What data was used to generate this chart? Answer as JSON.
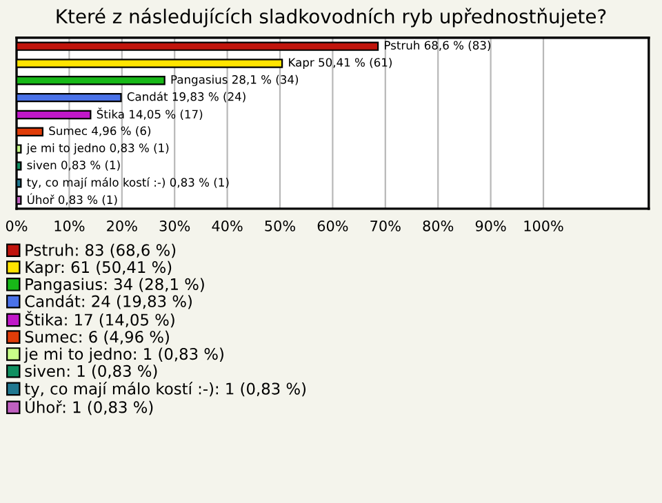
{
  "chart_data": {
    "type": "bar",
    "orientation": "horizontal",
    "title": "Které z následujících sladkovodních ryb upřednostňujete?",
    "categories": [
      null,
      null,
      null,
      null,
      null,
      null,
      null,
      null,
      null,
      null
    ],
    "series": [
      {
        "name": "Pstruh: 83 (68,6 %)",
        "color": "#c0140c",
        "values": [
          68.6,
          null,
          null,
          null,
          null,
          null,
          null,
          null,
          null,
          null
        ],
        "value_labels": [
          "Pstruh 68,6 % (83)",
          null,
          null,
          null,
          null,
          null,
          null,
          null,
          null,
          null
        ]
      },
      {
        "name": "Kapr: 61 (50,41 %)",
        "color": "#ffe400",
        "values": [
          null,
          50.41,
          null,
          null,
          null,
          null,
          null,
          null,
          null,
          null
        ],
        "value_labels": [
          null,
          "Kapr 50,41 % (61)",
          null,
          null,
          null,
          null,
          null,
          null,
          null,
          null
        ]
      },
      {
        "name": "Pangasius: 34 (28,1 %)",
        "color": "#18b818",
        "values": [
          null,
          null,
          28.1,
          null,
          null,
          null,
          null,
          null,
          null,
          null
        ],
        "value_labels": [
          null,
          null,
          "Pangasius 28,1 % (34)",
          null,
          null,
          null,
          null,
          null,
          null,
          null
        ]
      },
      {
        "name": "Candát: 24 (19,83 %)",
        "color": "#4a72e8",
        "values": [
          null,
          null,
          null,
          19.83,
          null,
          null,
          null,
          null,
          null,
          null
        ],
        "value_labels": [
          null,
          null,
          null,
          "Candát 19,83 % (24)",
          null,
          null,
          null,
          null,
          null,
          null
        ]
      },
      {
        "name": "Štika: 17 (14,05 %)",
        "color": "#c018c8",
        "values": [
          null,
          null,
          null,
          null,
          14.05,
          null,
          null,
          null,
          null,
          null
        ],
        "value_labels": [
          null,
          null,
          null,
          null,
          "Štika 14,05 % (17)",
          null,
          null,
          null,
          null,
          null
        ]
      },
      {
        "name": "Sumec: 6 (4,96 %)",
        "color": "#e03c08",
        "values": [
          null,
          null,
          null,
          null,
          null,
          4.96,
          null,
          null,
          null,
          null
        ],
        "value_labels": [
          null,
          null,
          null,
          null,
          null,
          "Sumec 4,96 % (6)",
          null,
          null,
          null,
          null
        ]
      },
      {
        "name": "je mi to jedno: 1 (0,83 %)",
        "color": "#c8ff88",
        "values": [
          null,
          null,
          null,
          null,
          null,
          null,
          0.83,
          null,
          null,
          null
        ],
        "value_labels": [
          null,
          null,
          null,
          null,
          null,
          null,
          "je mi to jedno 0,83 % (1)",
          null,
          null,
          null
        ]
      },
      {
        "name": "siven: 1 (0,83 %)",
        "color": "#109060",
        "values": [
          null,
          null,
          null,
          null,
          null,
          null,
          null,
          0.83,
          null,
          null
        ],
        "value_labels": [
          null,
          null,
          null,
          null,
          null,
          null,
          null,
          "siven 0,83 % (1)",
          null,
          null
        ]
      },
      {
        "name": "ty, co mají málo kostí :-): 1 (0,83 %)",
        "color": "#207890",
        "values": [
          null,
          null,
          null,
          null,
          null,
          null,
          null,
          null,
          0.83,
          null
        ],
        "value_labels": [
          null,
          null,
          null,
          null,
          null,
          null,
          null,
          null,
          "ty, co mají málo kostí :-) 0,83 % (1)",
          null
        ]
      },
      {
        "name": "Úhoř: 1 (0,83 %)",
        "color": "#c060c0",
        "values": [
          null,
          null,
          null,
          null,
          null,
          null,
          null,
          null,
          null,
          0.83
        ],
        "value_labels": [
          null,
          null,
          null,
          null,
          null,
          null,
          null,
          null,
          null,
          "Úhoř 0,83 % (1)"
        ]
      }
    ],
    "xlim": [
      0,
      120
    ],
    "xticks": [
      {
        "value": 0,
        "label": "0%"
      },
      {
        "value": 10,
        "label": "10%"
      },
      {
        "value": 20,
        "label": "20%"
      },
      {
        "value": 30,
        "label": "30%"
      },
      {
        "value": 40,
        "label": "40%"
      },
      {
        "value": 50,
        "label": "50%"
      },
      {
        "value": 60,
        "label": "60%"
      },
      {
        "value": 70,
        "label": "70%"
      },
      {
        "value": 80,
        "label": "80%"
      },
      {
        "value": 90,
        "label": "90%"
      },
      {
        "value": 100,
        "label": "100%"
      }
    ],
    "grid": "x",
    "legend": "bottom",
    "tick_labels": "x"
  }
}
